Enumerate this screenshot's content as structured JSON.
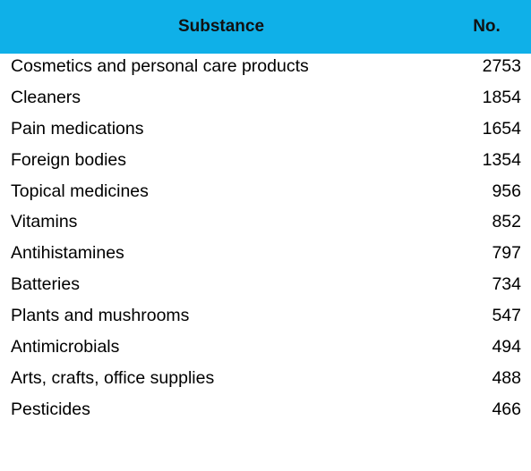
{
  "header": {
    "substance": "Substance",
    "no": "No."
  },
  "rows": [
    {
      "substance": "Cosmetics and personal care products",
      "no": "2753"
    },
    {
      "substance": "Cleaners",
      "no": "1854"
    },
    {
      "substance": "Pain medications",
      "no": "1654"
    },
    {
      "substance": "Foreign bodies",
      "no": "1354"
    },
    {
      "substance": "Topical medicines",
      "no": "956"
    },
    {
      "substance": "Vitamins",
      "no": "852"
    },
    {
      "substance": "Antihistamines",
      "no": "797"
    },
    {
      "substance": "Batteries",
      "no": "734"
    },
    {
      "substance": "Plants and mushrooms",
      "no": "547"
    },
    {
      "substance": "Antimicrobials",
      "no": "494"
    },
    {
      "substance": "Arts, crafts, office supplies",
      "no": "488"
    },
    {
      "substance": "Pesticides",
      "no": "466"
    }
  ],
  "colors": {
    "header_bg": "#0FB0E8",
    "text": "#000000"
  }
}
